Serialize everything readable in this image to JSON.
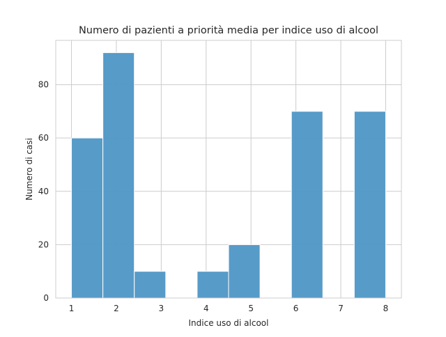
{
  "chart_data": {
    "type": "bar",
    "title": "Numero di pazienti a priorità media per indice uso di alcool",
    "xlabel": "Indice uso di alcool",
    "ylabel": "Numero di casi",
    "bins": [
      {
        "start": 1.0,
        "end": 1.7,
        "value": 60
      },
      {
        "start": 1.7,
        "end": 2.4,
        "value": 92
      },
      {
        "start": 2.4,
        "end": 3.1,
        "value": 10
      },
      {
        "start": 3.1,
        "end": 3.8,
        "value": 0
      },
      {
        "start": 3.8,
        "end": 4.5,
        "value": 10
      },
      {
        "start": 4.5,
        "end": 5.2,
        "value": 20
      },
      {
        "start": 5.2,
        "end": 5.9,
        "value": 0
      },
      {
        "start": 5.9,
        "end": 6.6,
        "value": 70
      },
      {
        "start": 6.6,
        "end": 7.3,
        "value": 0
      },
      {
        "start": 7.3,
        "end": 8.0,
        "value": 70
      }
    ],
    "xlim": [
      0.65,
      8.35
    ],
    "ylim": [
      0,
      96.6
    ],
    "xticks": [
      "1",
      "2",
      "3",
      "4",
      "5",
      "6",
      "7",
      "8"
    ],
    "yticks": [
      "0",
      "20",
      "40",
      "60",
      "80"
    ],
    "bar_color": "#5499c7",
    "grid": true,
    "legend": "none"
  }
}
